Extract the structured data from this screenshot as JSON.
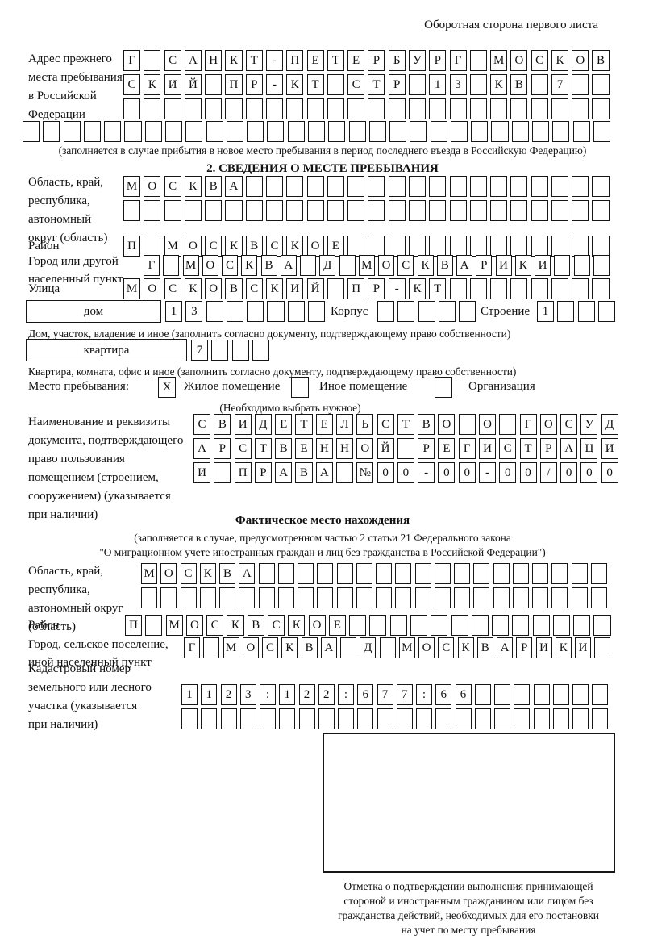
{
  "header": {
    "back_side_note": "Оборотная сторона первого листа"
  },
  "prev_address": {
    "label": "Адрес прежнего\nместа пребывания\nв Российской\nФедерации",
    "row1": {
      "len": 24,
      "text": "Г САНКТ-ПЕТЕРБУРГ МОСКОВ"
    },
    "row2": {
      "len": 24,
      "text": "СКИЙ ПР-КТ СТР 13 КВ 7"
    },
    "row3": {
      "len": 24,
      "text": ""
    },
    "row4": {
      "len": 29,
      "text": ""
    },
    "note": "(заполняется в случае прибытия в новое место пребывания в период последнего въезда в Российскую Федерацию)"
  },
  "section2": {
    "title": "2. СВЕДЕНИЯ О МЕСТЕ ПРЕБЫВАНИЯ",
    "region_label": "Область, край,\nреспублика,\nавтономный\nокруг (область)",
    "region_row1": {
      "len": 24,
      "text": "МОСКВА"
    },
    "region_row2": {
      "len": 24,
      "text": ""
    },
    "district_label": "Район",
    "district_row": {
      "len": 24,
      "text": "П МОСКВСКОЕ"
    },
    "city_label": "Город или другой\nнаселенный пункт",
    "city_row": {
      "len": 24,
      "text": "Г МОСКВА Д МОСКВАРИКИ"
    },
    "street_label": "Улица",
    "street_row": {
      "len": 24,
      "text": "МОСКОВСКИЙ ПР-КТ"
    },
    "house_label": "дом",
    "house_row": {
      "len": 8,
      "text": "13"
    },
    "korpus_label": "Корпус",
    "korpus_row": {
      "len": 5,
      "text": ""
    },
    "stroenie_label": "Строение",
    "stroenie_row": {
      "len": 4,
      "text": "1"
    },
    "house_note": "Дом, участок, владение и иное (заполнить согласно документу, подтверждающему право собственности)",
    "apartment_label": "квартира",
    "apartment_row": {
      "len": 4,
      "text": "7"
    },
    "apartment_note": "Квартира, комната, офис и иное (заполнить согласно документу, подтверждающему право собственности)",
    "stay": {
      "label": "Место пребывания:",
      "options": [
        {
          "mark": "X",
          "label": "Жилое помещение"
        },
        {
          "mark": "",
          "label": "Иное помещение"
        },
        {
          "mark": "",
          "label": "Организация"
        }
      ],
      "note": "(Необходимо выбрать нужное)"
    },
    "doc_label": "Наименование и реквизиты\nдокумента, подтверждающего\nправо пользования\nпомещением (строением,\nсооружением) (указывается\nпри наличии)",
    "doc_row1": {
      "len": 21,
      "text": "СВИДЕТЕЛЬСТВО О ГОСУД"
    },
    "doc_row2": {
      "len": 21,
      "text": "АРСТВЕННОЙ РЕГИСТРАЦИ"
    },
    "doc_row3": {
      "len": 21,
      "text": "И ПРАВА №00-00-00/000"
    }
  },
  "actual": {
    "title": "Фактическое место нахождения",
    "note": "(заполняется в случае, предусмотренном частью 2 статьи 21 Федерального закона\n\"О миграционном учете иностранных граждан и лиц без гражданства в Российской Федерации\")",
    "region_label": "Область, край,\nреспублика,\nавтономный округ\n(область)",
    "region_row1": {
      "len": 24,
      "text": "МОСКВА"
    },
    "region_row2": {
      "len": 24,
      "text": ""
    },
    "district_label": "Район",
    "district_row": {
      "len": 24,
      "text": "П МОСКВСКОЕ"
    },
    "city_label": "Город, сельское поселение,\nиной населенный пункт",
    "city_row": {
      "len": 22,
      "text": "Г МОСКВА Д МОСКВАРИКИ"
    },
    "cadastral_label": "Кадастровый номер\nземельного или лесного\nучастка (указывается\nпри наличии)",
    "cadastral_row1": {
      "len": 22,
      "text": "1123:122:677:66"
    },
    "cadastral_row2": {
      "len": 22,
      "text": ""
    }
  },
  "stamp": {
    "caption": "Отметка о подтверждении выполнения принимающей\nстороной и иностранным гражданином или лицом без\nгражданства действий, необходимых для его постановки\nна учет по месту пребывания"
  }
}
